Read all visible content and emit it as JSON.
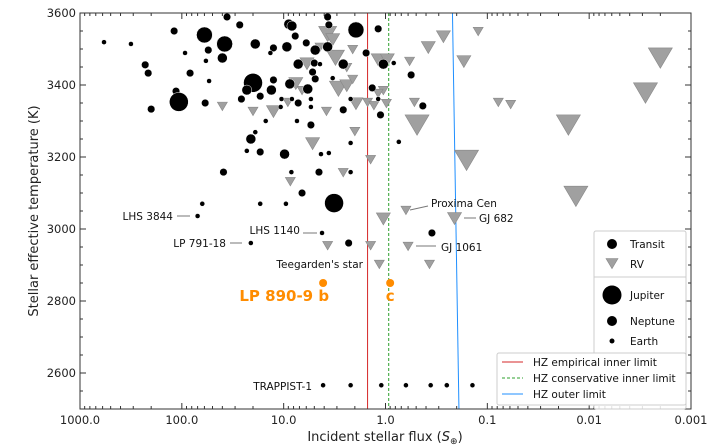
{
  "chart_data": {
    "type": "scatter",
    "xlabel": "Incident stellar flux",
    "xlabel_unit": "S",
    "xlabel_unit_sub": "⊕",
    "ylabel": "Stellar effective temperature (K)",
    "x_scale": "log",
    "x_reversed": true,
    "xlim": [
      1000,
      0.001
    ],
    "ylim": [
      2500,
      3600
    ],
    "x_ticks": [
      "1000.0",
      "100.0",
      "10.0",
      "1.0",
      "0.1",
      "0.01",
      "0.001"
    ],
    "x_tick_values": [
      1000,
      100,
      10,
      1,
      0.1,
      0.01,
      0.001
    ],
    "y_ticks": [
      2600,
      2800,
      3000,
      3200,
      3400,
      3600
    ],
    "grid": false,
    "colors": {
      "transit": "#000000",
      "rv": "#a0a0a0",
      "highlight": "#ff8c00",
      "hz_empirical": "#d62728",
      "hz_conservative": "#2ca02c",
      "hz_outer": "#1f8fff"
    },
    "size_note": "size in Earth radii",
    "transit": [
      [
        581,
        3519,
        1
      ],
      [
        316,
        3514,
        1
      ],
      [
        119,
        3550,
        2
      ],
      [
        60,
        3539,
        5
      ],
      [
        38,
        3514,
        5
      ],
      [
        36,
        3589,
        2
      ],
      [
        27,
        3567,
        2
      ],
      [
        55,
        3497,
        2
      ],
      [
        40,
        3475,
        3
      ],
      [
        93,
        3489,
        1
      ],
      [
        58,
        3467,
        1
      ],
      [
        229,
        3456,
        2
      ],
      [
        214,
        3433,
        2
      ],
      [
        83,
        3433,
        2
      ],
      [
        54,
        3411,
        1
      ],
      [
        114,
        3383,
        2
      ],
      [
        107,
        3353,
        11
      ],
      [
        59,
        3350,
        2
      ],
      [
        200,
        3333,
        2
      ],
      [
        20,
        3406,
        11
      ],
      [
        23,
        3386,
        3
      ],
      [
        17,
        3369,
        2
      ],
      [
        26,
        3361,
        2
      ],
      [
        13.2,
        3386,
        3
      ],
      [
        12.6,
        3414,
        2
      ],
      [
        8.7,
        3403,
        3
      ],
      [
        19,
        3514,
        3
      ],
      [
        12.6,
        3503,
        2
      ],
      [
        9.3,
        3506,
        3
      ],
      [
        13.5,
        3489,
        1
      ],
      [
        8.9,
        3569,
        3
      ],
      [
        8.3,
        3564,
        3
      ],
      [
        7.7,
        3536,
        2
      ],
      [
        6.0,
        3517,
        2
      ],
      [
        4.9,
        3497,
        3
      ],
      [
        3.7,
        3506,
        3
      ],
      [
        3.7,
        3589,
        2
      ],
      [
        3.6,
        3567,
        2
      ],
      [
        1.95,
        3553,
        5
      ],
      [
        1.18,
        3556,
        2
      ],
      [
        1.55,
        3489,
        2
      ],
      [
        2.6,
        3458,
        3
      ],
      [
        7.2,
        3458,
        3
      ],
      [
        5.0,
        3461,
        2
      ],
      [
        4.4,
        3458,
        1
      ],
      [
        5.2,
        3436,
        2
      ],
      [
        4.9,
        3417,
        2
      ],
      [
        3.3,
        3419,
        1
      ],
      [
        5.8,
        3389,
        3
      ],
      [
        10.5,
        3361,
        1
      ],
      [
        8.3,
        3361,
        1
      ],
      [
        7.2,
        3350,
        2
      ],
      [
        5.4,
        3361,
        1
      ],
      [
        5.4,
        3339,
        1
      ],
      [
        10.7,
        3339,
        1
      ],
      [
        2.6,
        3331,
        2
      ],
      [
        2.2,
        3361,
        1
      ],
      [
        1.35,
        3392,
        2
      ],
      [
        1.18,
        3361,
        1
      ],
      [
        1.12,
        3317,
        2
      ],
      [
        1.05,
        3458,
        3
      ],
      [
        0.83,
        3461,
        1
      ],
      [
        0.56,
        3428,
        2
      ],
      [
        0.43,
        3342,
        2
      ],
      [
        0.74,
        3242,
        1
      ],
      [
        15,
        3300,
        1
      ],
      [
        7.4,
        3300,
        1
      ],
      [
        5.4,
        3289,
        2
      ],
      [
        19,
        3269,
        1
      ],
      [
        21,
        3250,
        3
      ],
      [
        23,
        3217,
        1
      ],
      [
        17,
        3214,
        2
      ],
      [
        9.8,
        3208,
        3
      ],
      [
        4.3,
        3208,
        1
      ],
      [
        3.6,
        3211,
        1
      ],
      [
        39,
        3158,
        2
      ],
      [
        8.4,
        3158,
        1
      ],
      [
        4.5,
        3158,
        2
      ],
      [
        2.2,
        3158,
        1
      ],
      [
        2.2,
        3239,
        1
      ],
      [
        6.6,
        3100,
        2
      ],
      [
        3.2,
        3072,
        11
      ],
      [
        63,
        3070,
        1
      ],
      [
        17,
        3070,
        1
      ],
      [
        9.5,
        3070,
        1
      ],
      [
        70,
        3036,
        1
      ],
      [
        21,
        2961,
        1
      ],
      [
        4.2,
        2989,
        1
      ],
      [
        2.3,
        2961,
        2
      ],
      [
        0.35,
        2989,
        2
      ],
      [
        4.1,
        2566,
        1
      ],
      [
        2.2,
        2566,
        1
      ],
      [
        1.1,
        2566,
        1
      ],
      [
        0.63,
        2566,
        1
      ],
      [
        0.36,
        2566,
        1
      ],
      [
        0.25,
        2566,
        1
      ],
      [
        0.14,
        2566,
        1
      ]
    ],
    "rv": [
      [
        3.7,
        3544,
        4
      ],
      [
        3.3,
        3528,
        3
      ],
      [
        4.4,
        3506,
        2
      ],
      [
        2.1,
        3500,
        2
      ],
      [
        3.1,
        3478,
        4
      ],
      [
        5.9,
        3461,
        3
      ],
      [
        2.4,
        3450,
        2
      ],
      [
        1.18,
        3472,
        3
      ],
      [
        0.96,
        3472,
        3
      ],
      [
        7.6,
        3406,
        3
      ],
      [
        6.6,
        3386,
        2
      ],
      [
        2.9,
        3392,
        4
      ],
      [
        2.4,
        3400,
        3
      ],
      [
        2.1,
        3417,
        2
      ],
      [
        1.05,
        3386,
        2
      ],
      [
        1.18,
        3378,
        2
      ],
      [
        1.95,
        3350,
        3
      ],
      [
        1.5,
        3353,
        2
      ],
      [
        1.3,
        3344,
        2
      ],
      [
        0.98,
        3350,
        2
      ],
      [
        0.52,
        3353,
        2
      ],
      [
        40,
        3342,
        2
      ],
      [
        20,
        3328,
        2
      ],
      [
        12.6,
        3328,
        3
      ],
      [
        9.1,
        3353,
        2
      ],
      [
        3.8,
        3328,
        2
      ],
      [
        2.0,
        3272,
        2
      ],
      [
        5.2,
        3239,
        3
      ],
      [
        1.4,
        3194,
        2
      ],
      [
        2.6,
        3158,
        2
      ],
      [
        8.6,
        3133,
        2
      ],
      [
        0.49,
        3292,
        5
      ],
      [
        0.38,
        3506,
        3
      ],
      [
        0.27,
        3536,
        3
      ],
      [
        0.17,
        3467,
        3
      ],
      [
        0.16,
        3194,
        5
      ],
      [
        0.123,
        3550,
        2
      ],
      [
        0.58,
        3467,
        2
      ],
      [
        0.078,
        3353,
        2
      ],
      [
        0.059,
        3347,
        2
      ],
      [
        0.016,
        3292,
        5
      ],
      [
        0.0028,
        3381,
        5
      ],
      [
        0.002,
        3478,
        5
      ],
      [
        0.0135,
        3094,
        5
      ],
      [
        0.63,
        3053,
        2
      ],
      [
        0.21,
        3031,
        3
      ],
      [
        0.6,
        2953,
        2
      ],
      [
        1.15,
        2903,
        2
      ],
      [
        0.37,
        2903,
        2
      ],
      [
        3.7,
        2955,
        2
      ],
      [
        1.4,
        2955,
        2
      ],
      [
        1.05,
        3030,
        3
      ]
    ],
    "highlight": [
      {
        "label": "LP 890-9 b",
        "flux": 4.1,
        "teff": 2850
      },
      {
        "label": "c",
        "flux": 0.9,
        "teff": 2850
      }
    ],
    "annotations": [
      {
        "text": "LHS 3844",
        "flux": 70,
        "teff": 3036
      },
      {
        "text": "LP 791-18",
        "flux": 21,
        "teff": 2961
      },
      {
        "text": "LHS 1140",
        "flux": 4.2,
        "teff": 2989
      },
      {
        "text": "Proxima Cen",
        "flux": 0.63,
        "teff": 3053
      },
      {
        "text": "GJ 682",
        "flux": 0.21,
        "teff": 3031
      },
      {
        "text": "GJ 1061",
        "flux": 0.6,
        "teff": 2953
      },
      {
        "text": "Teegarden's star",
        "flux": 1.15,
        "teff": 2903
      },
      {
        "text": "TRAPPIST-1",
        "flux": 4.1,
        "teff": 2566
      }
    ],
    "hz_lines": [
      {
        "name": "HZ empirical inner limit",
        "flux_at_3600": 1.5,
        "flux_at_2500": 1.5,
        "style": "solid",
        "color": "#d62728"
      },
      {
        "name": "HZ conservative inner limit",
        "flux_at_3600": 0.93,
        "flux_at_2500": 0.93,
        "style": "dashed",
        "color": "#2ca02c"
      },
      {
        "name": "HZ outer limit",
        "flux_at_3600": 0.22,
        "flux_at_2500": 0.19,
        "style": "solid",
        "color": "#1f8fff"
      }
    ],
    "legend_method": [
      "Transit",
      "RV"
    ],
    "legend_size": [
      "Jupiter",
      "Neptune",
      "Earth"
    ],
    "legend_placement": "lower-right"
  }
}
